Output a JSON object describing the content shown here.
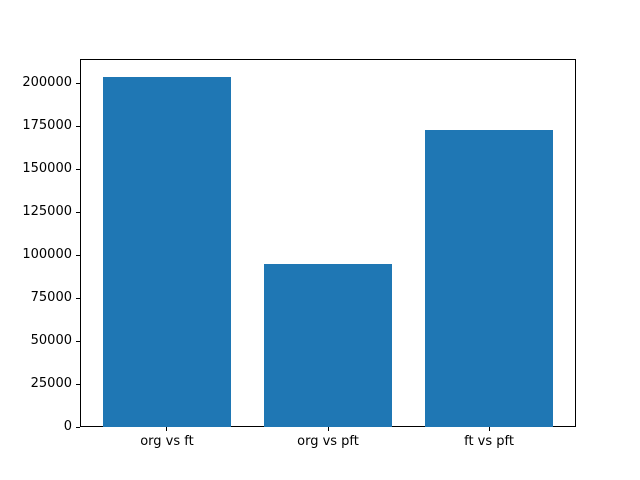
{
  "chart_data": {
    "type": "bar",
    "categories": [
      "org vs ft",
      "org vs pft",
      "ft vs pft"
    ],
    "values": [
      204000,
      95000,
      173000
    ],
    "title": "",
    "xlabel": "",
    "ylabel": "",
    "ylim": [
      0,
      214200
    ],
    "yticks": [
      0,
      25000,
      50000,
      75000,
      100000,
      125000,
      150000,
      175000,
      200000
    ],
    "bar_color": "#1f77b4",
    "bar_width_fraction": 0.8,
    "grid": false,
    "legend": null,
    "background_color": "#ffffff",
    "axis_color": "#000000"
  }
}
